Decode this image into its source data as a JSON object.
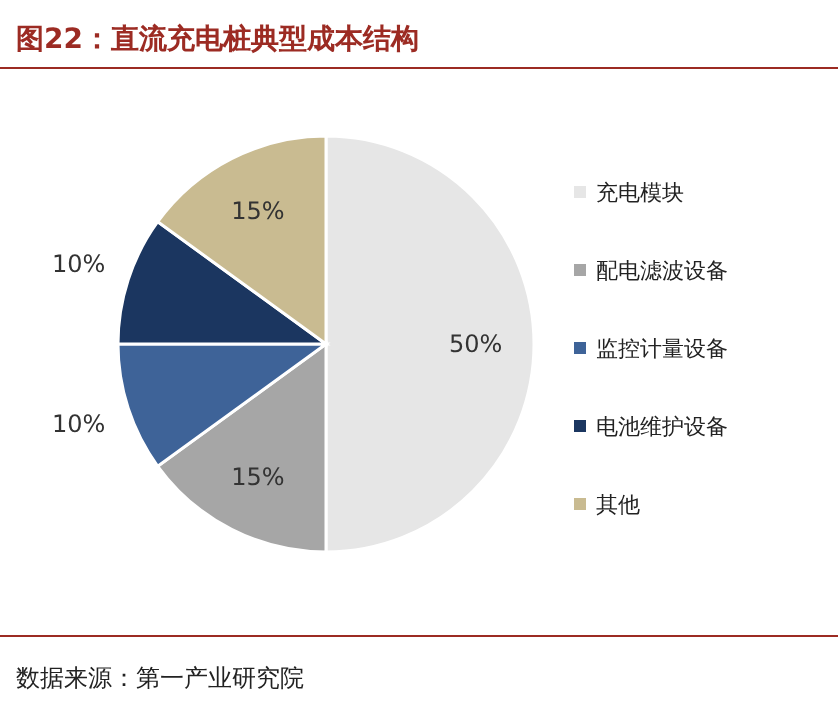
{
  "chart_data": {
    "type": "pie",
    "title": "图22：直流充电桩典型成本结构",
    "categories": [
      "充电模块",
      "配电滤波设备",
      "监控计量设备",
      "电池维护设备",
      "其他"
    ],
    "values": [
      50,
      15,
      10,
      10,
      15
    ],
    "colors": [
      "#e6e6e6",
      "#a6a6a6",
      "#3e6398",
      "#1b3660",
      "#c9bb91"
    ],
    "value_labels": [
      "50%",
      "15%",
      "10%",
      "10%",
      "15%"
    ],
    "legend": "right",
    "annotations": [
      "数据来源：第一产业研究院"
    ]
  }
}
